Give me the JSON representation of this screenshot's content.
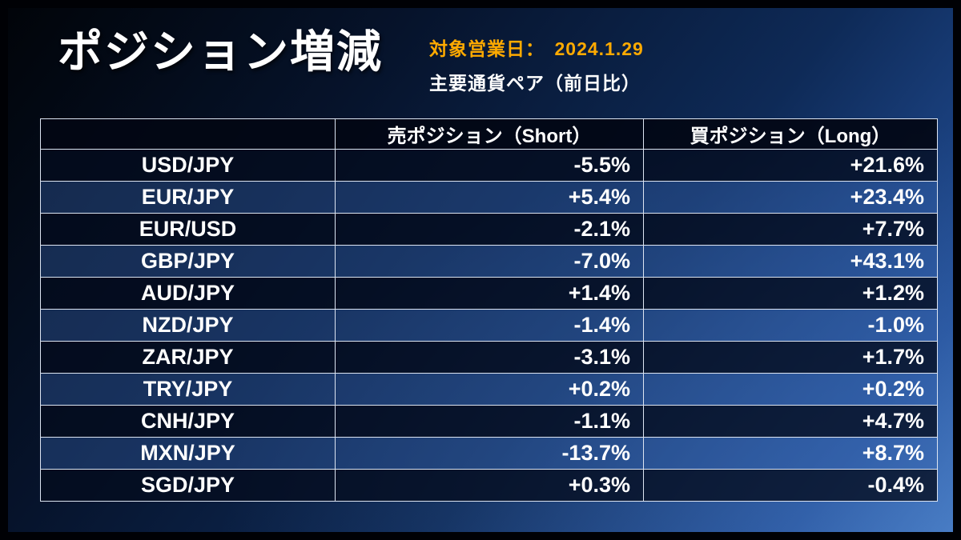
{
  "header": {
    "title": "ポジション増減",
    "date_label": "対象営業日：　2024.1.29",
    "subtitle": "主要通貨ペア（前日比）"
  },
  "chart_data": {
    "type": "table",
    "title": "ポジション増減 主要通貨ペア（前日比） 対象営業日 2024.1.29",
    "columns": [
      "",
      "売ポジション（Short）",
      "買ポジション（Long）"
    ],
    "rows": [
      {
        "pair": "USD/JPY",
        "short": "-5.5%",
        "long": "+21.6%"
      },
      {
        "pair": "EUR/JPY",
        "short": "+5.4%",
        "long": "+23.4%"
      },
      {
        "pair": "EUR/USD",
        "short": "-2.1%",
        "long": "+7.7%"
      },
      {
        "pair": "GBP/JPY",
        "short": "-7.0%",
        "long": "+43.1%"
      },
      {
        "pair": "AUD/JPY",
        "short": "+1.4%",
        "long": "+1.2%"
      },
      {
        "pair": "NZD/JPY",
        "short": "-1.4%",
        "long": "-1.0%"
      },
      {
        "pair": "ZAR/JPY",
        "short": "-3.1%",
        "long": "+1.7%"
      },
      {
        "pair": "TRY/JPY",
        "short": "+0.2%",
        "long": "+0.2%"
      },
      {
        "pair": "CNH/JPY",
        "short": "-1.1%",
        "long": "+4.7%"
      },
      {
        "pair": "MXN/JPY",
        "short": "-13.7%",
        "long": "+8.7%"
      },
      {
        "pair": "SGD/JPY",
        "short": "+0.3%",
        "long": "-0.4%"
      }
    ],
    "colors": {
      "accent_date": "#ffaa00",
      "text": "#ffffff",
      "background_dark": "#010409",
      "background_light": "#3f74bd"
    }
  }
}
